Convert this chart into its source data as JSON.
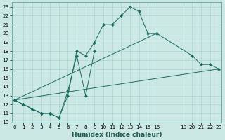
{
  "xlabel": "Humidex (Indice chaleur)",
  "bg_color": "#cce8e5",
  "grid_color": "#aad4d0",
  "line_color": "#1a6b60",
  "bg_color2": "#b8dbd8",
  "line1_x": [
    0,
    1,
    2,
    3,
    4,
    5,
    6,
    7,
    8,
    9,
    10,
    11,
    12,
    13,
    14,
    15,
    16
  ],
  "line1_y": [
    12.5,
    12.0,
    11.5,
    11.0,
    11.0,
    10.5,
    13.0,
    18.0,
    17.5,
    19.0,
    21.0,
    21.0,
    22.0,
    23.0,
    22.5,
    20.0,
    20.0
  ],
  "line2_x": [
    0,
    1,
    2,
    3,
    4,
    5,
    6,
    7,
    8,
    9
  ],
  "line2_y": [
    12.5,
    12.0,
    11.5,
    11.0,
    11.0,
    10.5,
    13.5,
    17.5,
    13.0,
    18.0
  ],
  "line3_x": [
    0,
    16,
    20,
    21,
    22,
    23
  ],
  "line3_y": [
    12.5,
    20.0,
    17.5,
    16.5,
    16.5,
    16.0
  ],
  "line4_x": [
    0,
    23
  ],
  "line4_y": [
    12.5,
    16.0
  ],
  "xlim": [
    -0.3,
    23.3
  ],
  "ylim": [
    10.0,
    23.5
  ],
  "yticks": [
    10,
    11,
    12,
    13,
    14,
    15,
    16,
    17,
    18,
    19,
    20,
    21,
    22,
    23
  ],
  "xticks": [
    0,
    1,
    2,
    3,
    4,
    5,
    6,
    7,
    8,
    9,
    10,
    11,
    12,
    13,
    14,
    15,
    16,
    19,
    20,
    21,
    22,
    23
  ],
  "xlabel_fontsize": 6.5,
  "tick_fontsize": 5.2
}
